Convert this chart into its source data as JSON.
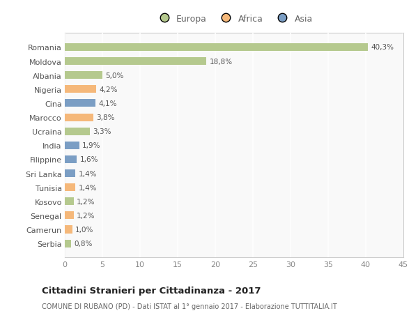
{
  "countries": [
    "Romania",
    "Moldova",
    "Albania",
    "Nigeria",
    "Cina",
    "Marocco",
    "Ucraina",
    "India",
    "Filippine",
    "Sri Lanka",
    "Tunisia",
    "Kosovo",
    "Senegal",
    "Camerun",
    "Serbia"
  ],
  "values": [
    40.3,
    18.8,
    5.0,
    4.2,
    4.1,
    3.8,
    3.3,
    1.9,
    1.6,
    1.4,
    1.4,
    1.2,
    1.2,
    1.0,
    0.8
  ],
  "labels": [
    "40,3%",
    "18,8%",
    "5,0%",
    "4,2%",
    "4,1%",
    "3,8%",
    "3,3%",
    "1,9%",
    "1,6%",
    "1,4%",
    "1,4%",
    "1,2%",
    "1,2%",
    "1,0%",
    "0,8%"
  ],
  "continents": [
    "Europa",
    "Europa",
    "Europa",
    "Africa",
    "Asia",
    "Africa",
    "Europa",
    "Asia",
    "Asia",
    "Asia",
    "Africa",
    "Europa",
    "Africa",
    "Africa",
    "Europa"
  ],
  "colors": {
    "Europa": "#b5c98e",
    "Africa": "#f5b87a",
    "Asia": "#7b9ec4"
  },
  "legend_order": [
    "Europa",
    "Africa",
    "Asia"
  ],
  "xlim": [
    0,
    45
  ],
  "xticks": [
    0,
    5,
    10,
    15,
    20,
    25,
    30,
    35,
    40,
    45
  ],
  "title": "Cittadini Stranieri per Cittadinanza - 2017",
  "subtitle": "COMUNE DI RUBANO (PD) - Dati ISTAT al 1° gennaio 2017 - Elaborazione TUTTITALIA.IT",
  "background_color": "#ffffff",
  "plot_bg_color": "#f9f9f9",
  "grid_color": "#ffffff",
  "bar_height": 0.55,
  "label_fontsize": 7.5,
  "ytick_fontsize": 8,
  "xtick_fontsize": 8
}
